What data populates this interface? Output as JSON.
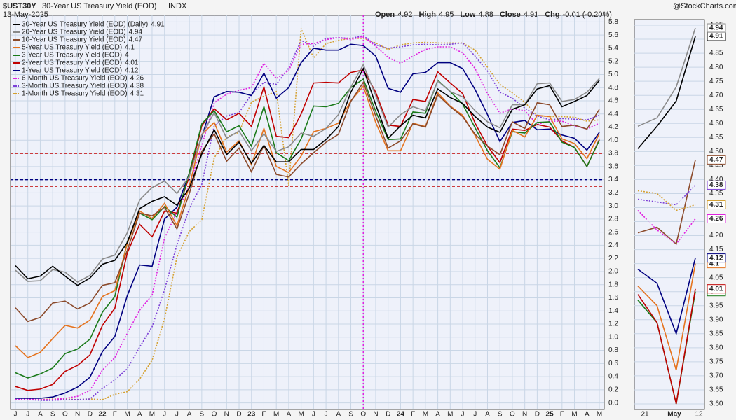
{
  "chart_data": {
    "type": "line",
    "ticker": "$UST30Y",
    "title": "30-Year US Treasury Yield (EOD)",
    "exchange": "INDX",
    "date": "13-May-2025",
    "quote": [
      {
        "label": "Open",
        "value": "4.92"
      },
      {
        "label": "High",
        "value": "4.95"
      },
      {
        "label": "Low",
        "value": "4.88"
      },
      {
        "label": "Close",
        "value": "4.91"
      },
      {
        "label": "Chg",
        "value": "-0.01 (-0.20%)"
      }
    ],
    "watermark": "@StockCharts.com",
    "categories": [
      "J",
      "J",
      "A",
      "S",
      "O",
      "N",
      "D",
      "22",
      "F",
      "M",
      "A",
      "M",
      "J",
      "J",
      "A",
      "S",
      "O",
      "N",
      "D",
      "23",
      "F",
      "M",
      "A",
      "M",
      "J",
      "J",
      "A",
      "S",
      "O",
      "N",
      "D",
      "24",
      "F",
      "M",
      "A",
      "M",
      "J",
      "J",
      "A",
      "S",
      "O",
      "N",
      "D",
      "25",
      "F",
      "M",
      "A",
      "M"
    ],
    "ylim": [
      -0.1,
      5.9
    ],
    "yticks": [
      {
        "value": 0,
        "label": "0.0"
      },
      0.2,
      0.4,
      0.6,
      0.8,
      {
        "value": 1,
        "label": "1.0"
      },
      1.2,
      1.4,
      1.6,
      1.8,
      {
        "value": 2,
        "label": "2.0"
      },
      2.2,
      2.4,
      2.6,
      2.8,
      {
        "value": 3,
        "label": "3.0"
      },
      3.2,
      3.4,
      3.6,
      3.8,
      {
        "value": 4,
        "label": "4.0"
      },
      4.2,
      4.4,
      4.6,
      4.8,
      {
        "value": 5,
        "label": "5.0"
      },
      5.2,
      5.4,
      5.6,
      5.8
    ],
    "grid": true,
    "reference_lines": [
      {
        "value": 3.8,
        "color": "#c00000"
      },
      {
        "value": 3.4,
        "color": "#000080"
      },
      {
        "value": 3.3,
        "color": "#c00000"
      }
    ],
    "vline_at": 28,
    "vline_color": "#e020e0",
    "series": [
      {
        "name": "30-Year US Treasury Yield (EOD) (Daily)",
        "color": "#000000",
        "style": "solid",
        "values": [
          2.09,
          1.89,
          1.93,
          2.08,
          1.93,
          1.79,
          1.9,
          2.11,
          2.17,
          2.44,
          2.96,
          3.07,
          3.14,
          3.01,
          3.27,
          3.79,
          4.16,
          3.78,
          3.97,
          3.65,
          3.92,
          3.67,
          3.67,
          3.86,
          3.86,
          4.01,
          4.21,
          4.73,
          5.09,
          4.54,
          4.03,
          4.22,
          4.38,
          4.34,
          4.78,
          4.65,
          4.56,
          4.36,
          4.2,
          4.12,
          4.47,
          4.54,
          4.78,
          4.83,
          4.51,
          4.59,
          4.68,
          4.91
        ]
      },
      {
        "name": "20-Year US Treasury Yield (EOD)",
        "color": "#8a8a8a",
        "style": "solid",
        "values": [
          2.02,
          1.85,
          1.86,
          2.03,
          1.99,
          1.84,
          1.94,
          2.19,
          2.25,
          2.59,
          3.09,
          3.28,
          3.38,
          3.19,
          3.45,
          4.08,
          4.42,
          4.03,
          4.14,
          3.84,
          4.1,
          3.83,
          3.9,
          4.11,
          4.06,
          4.18,
          4.39,
          4.81,
          5.15,
          4.68,
          4.2,
          4.39,
          4.51,
          4.45,
          4.9,
          4.74,
          4.66,
          4.45,
          4.28,
          4.19,
          4.54,
          4.54,
          4.86,
          4.87,
          4.59,
          4.62,
          4.73,
          4.94
        ]
      },
      {
        "name": "10-Year US Treasury Yield (EOD)",
        "color": "#8b4a2b",
        "style": "solid",
        "values": [
          1.45,
          1.24,
          1.3,
          1.52,
          1.55,
          1.43,
          1.52,
          1.79,
          1.83,
          2.32,
          2.89,
          2.85,
          2.98,
          2.65,
          3.19,
          3.83,
          4.1,
          3.68,
          3.88,
          3.52,
          3.92,
          3.48,
          3.44,
          3.64,
          3.81,
          3.97,
          4.09,
          4.59,
          4.88,
          4.37,
          3.88,
          3.99,
          4.25,
          4.2,
          4.69,
          4.51,
          4.36,
          4.09,
          3.91,
          3.78,
          4.28,
          4.18,
          4.57,
          4.54,
          4.21,
          4.23,
          4.17,
          4.47
        ]
      },
      {
        "name": "5-Year US Treasury Yield (EOD)",
        "color": "#e5731e",
        "style": "solid",
        "values": [
          0.87,
          0.69,
          0.77,
          0.98,
          1.18,
          1.14,
          1.26,
          1.62,
          1.71,
          2.42,
          2.92,
          2.81,
          3.04,
          2.7,
          3.3,
          4.09,
          4.27,
          3.82,
          3.99,
          3.63,
          4.18,
          3.6,
          3.51,
          3.76,
          4.13,
          4.18,
          4.26,
          4.6,
          4.82,
          4.27,
          3.84,
          3.84,
          4.26,
          4.21,
          4.72,
          4.52,
          4.38,
          4.07,
          3.71,
          3.56,
          4.15,
          4.05,
          4.38,
          4.36,
          4.02,
          3.95,
          3.72,
          4.1
        ]
      },
      {
        "name": "3-Year US Treasury Yield (EOD)",
        "color": "#1a7a1a",
        "style": "solid",
        "values": [
          0.46,
          0.38,
          0.44,
          0.53,
          0.75,
          0.82,
          0.97,
          1.38,
          1.62,
          2.45,
          2.89,
          2.79,
          2.99,
          2.83,
          3.51,
          4.25,
          4.45,
          4.13,
          4.22,
          3.91,
          4.51,
          3.81,
          3.69,
          4.02,
          4.52,
          4.51,
          4.56,
          4.8,
          4.93,
          4.44,
          4.01,
          4.02,
          4.43,
          4.41,
          4.91,
          4.74,
          4.55,
          4.19,
          3.84,
          3.58,
          4.13,
          4.11,
          4.27,
          4.28,
          3.97,
          3.89,
          3.6,
          4.0
        ]
      },
      {
        "name": "2-Year US Treasury Yield (EOD)",
        "color": "#c00000",
        "style": "solid",
        "values": [
          0.25,
          0.19,
          0.21,
          0.28,
          0.48,
          0.57,
          0.73,
          1.18,
          1.44,
          2.28,
          2.72,
          2.53,
          2.92,
          2.89,
          3.45,
          4.22,
          4.48,
          4.31,
          4.41,
          4.21,
          4.81,
          4.06,
          4.04,
          4.4,
          4.87,
          4.88,
          4.87,
          5.03,
          5.07,
          4.73,
          4.23,
          4.21,
          4.62,
          4.59,
          5.04,
          4.87,
          4.71,
          4.26,
          3.91,
          3.66,
          4.17,
          4.15,
          4.24,
          4.2,
          3.99,
          3.89,
          3.6,
          4.01
        ]
      },
      {
        "name": "1-Year US Treasury Yield (EOD)",
        "color": "#000080",
        "style": "solid",
        "values": [
          0.07,
          0.07,
          0.07,
          0.09,
          0.15,
          0.24,
          0.39,
          0.78,
          1.01,
          1.63,
          2.1,
          2.08,
          2.8,
          2.98,
          3.5,
          4.05,
          4.66,
          4.74,
          4.73,
          4.68,
          5.02,
          4.64,
          4.8,
          5.18,
          5.4,
          5.37,
          5.37,
          5.46,
          5.44,
          5.28,
          4.79,
          4.73,
          5.01,
          5.03,
          5.18,
          5.18,
          5.09,
          4.77,
          4.39,
          3.98,
          4.27,
          4.3,
          4.16,
          4.17,
          4.08,
          4.03,
          3.85,
          4.12
        ]
      },
      {
        "name": "6-Month US Treasury Yield (EOD)",
        "color": "#e020e0",
        "style": "dotted",
        "values": [
          0.05,
          0.06,
          0.05,
          0.05,
          0.07,
          0.1,
          0.19,
          0.5,
          0.69,
          1.06,
          1.41,
          1.64,
          2.51,
          2.91,
          3.3,
          3.92,
          4.57,
          4.7,
          4.76,
          4.8,
          5.17,
          4.94,
          5.06,
          5.46,
          5.47,
          5.53,
          5.56,
          5.53,
          5.58,
          5.43,
          5.26,
          5.17,
          5.28,
          5.38,
          5.42,
          5.42,
          5.33,
          5.09,
          4.71,
          4.41,
          4.48,
          4.45,
          4.24,
          4.29,
          4.29,
          4.22,
          4.17,
          4.26
        ]
      },
      {
        "name": "3-Month US Treasury Yield (EOD)",
        "color": "#7b3fd6",
        "style": "dotted",
        "values": [
          0.05,
          0.05,
          0.04,
          0.04,
          0.05,
          0.05,
          0.06,
          0.22,
          0.35,
          0.52,
          0.85,
          1.16,
          1.72,
          2.41,
          2.96,
          3.33,
          4.22,
          4.37,
          4.42,
          4.7,
          4.88,
          4.85,
          5.1,
          5.52,
          5.43,
          5.55,
          5.56,
          5.55,
          5.59,
          5.45,
          5.4,
          5.42,
          5.45,
          5.46,
          5.45,
          5.46,
          5.48,
          5.28,
          5.05,
          4.73,
          4.64,
          4.49,
          4.37,
          4.31,
          4.33,
          4.32,
          4.31,
          4.38
        ]
      },
      {
        "name": "1-Month US Treasury Yield (EOD)",
        "color": "#d4a030",
        "style": "dotted",
        "values": [
          0.05,
          0.05,
          0.05,
          0.06,
          0.06,
          0.05,
          0.06,
          0.05,
          0.13,
          0.17,
          0.36,
          0.65,
          1.28,
          2.22,
          2.61,
          2.79,
          3.73,
          4.05,
          4.12,
          4.58,
          4.67,
          4.74,
          3.31,
          5.7,
          5.25,
          5.47,
          5.52,
          5.55,
          5.55,
          5.48,
          5.38,
          5.45,
          5.48,
          5.49,
          5.48,
          5.48,
          5.48,
          5.37,
          5.11,
          4.85,
          4.72,
          4.58,
          4.37,
          4.36,
          4.36,
          4.35,
          4.29,
          4.31
        ]
      }
    ],
    "side_xlabels": [
      "21",
      "May",
      "12"
    ],
    "side_ylim": [
      3.58,
      4.97
    ],
    "side_yticks": [
      {
        "value": 3.6,
        "label": "3.60"
      },
      3.65,
      {
        "value": 3.7,
        "label": "3.70"
      },
      3.75,
      {
        "value": 3.8,
        "label": "3.80"
      },
      3.85,
      {
        "value": 3.9,
        "label": "3.90"
      },
      3.95,
      {
        "value": 4,
        "label": "4.00"
      },
      4.05,
      {
        "value": 4.1,
        "label": "4.10"
      },
      4.15,
      {
        "value": 4.2,
        "label": "4.20"
      },
      4.25,
      {
        "value": 4.3,
        "label": "4.30"
      },
      4.35,
      {
        "value": 4.4,
        "label": "4.40"
      },
      4.45,
      {
        "value": 4.5,
        "label": "4.50"
      },
      4.55,
      {
        "value": 4.6,
        "label": "4.60"
      },
      4.65,
      {
        "value": 4.7,
        "label": "4.70"
      },
      4.75,
      {
        "value": 4.8,
        "label": "4.80"
      },
      4.85,
      {
        "value": 4.9,
        "label": "4.90"
      },
      4.95
    ]
  }
}
